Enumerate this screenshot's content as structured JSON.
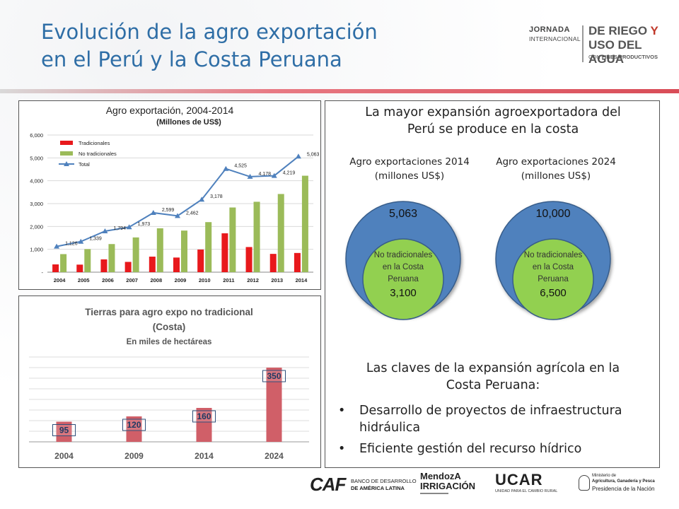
{
  "title": {
    "line1": "Evolución de la agro exportación",
    "line2": "en el Perú y la Costa Peruana"
  },
  "brand": {
    "jornada": "JORNADA",
    "internacional": "INTERNACIONAL",
    "riego": "DE RIEGO",
    "y": "Y",
    "agua": "USO DEL AGUA",
    "con": "CON",
    "fines": "FINES PRODUCTIVOS"
  },
  "chart_data": [
    {
      "type": "bar",
      "title": "Agro exportación, 2004-2014",
      "subtitle": "(Millones de US$)",
      "categories": [
        "2004",
        "2005",
        "2006",
        "2007",
        "2008",
        "2009",
        "2010",
        "2011",
        "2012",
        "2013",
        "2014"
      ],
      "series": [
        {
          "name": "Tradicionales",
          "type": "bar",
          "color": "#e8191c",
          "values": [
            340,
            330,
            560,
            450,
            680,
            640,
            990,
            1700,
            1100,
            800,
            840
          ]
        },
        {
          "name": "No tradicionales",
          "type": "bar",
          "color": "#9bbb59",
          "values": [
            790,
            1010,
            1230,
            1520,
            1920,
            1820,
            2190,
            2830,
            3080,
            3420,
            4220
          ]
        },
        {
          "name": "Total",
          "type": "line",
          "color": "#4f81bd",
          "values": [
            1126,
            1339,
            1794,
            1973,
            2599,
            2462,
            3178,
            4525,
            4178,
            4219,
            5063
          ],
          "labels": [
            "1,126",
            "1,339",
            "1,794",
            "1,973",
            "2,599",
            "2,462",
            "3,178",
            "4,525",
            "4,178",
            "4,219",
            "5,063"
          ]
        }
      ],
      "y_ticks": [
        "-",
        "1,000",
        "2,000",
        "3,000",
        "4,000",
        "5,000",
        "6,000"
      ],
      "ylim": [
        0,
        6000
      ],
      "grid": true,
      "legend": "top-left"
    },
    {
      "type": "bar",
      "title": "Tierras para agro expo no tradicional",
      "subtitle": "(Costa)",
      "unit": "En miles de hectáreas",
      "categories": [
        "2004",
        "2009",
        "2014",
        "2024"
      ],
      "values": [
        95,
        120,
        160,
        350
      ],
      "labels": [
        "95",
        "120",
        "160",
        "350"
      ],
      "ylim": [
        0,
        400
      ],
      "color": "#d05f68",
      "grid": true
    }
  ],
  "right_panel": {
    "heading_line1": "La mayor expansión agroexportadora del",
    "heading_line2": "Perú se produce en la costa",
    "left_title1": "Agro exportaciones 2014",
    "left_title2": "(millones US$)",
    "right_title1": "Agro exportaciones 2024",
    "right_title2": "(millones US$)",
    "left_total": "5,063",
    "right_total": "10,000",
    "inner_line1": "No tradicionales",
    "inner_line2": "en la Costa",
    "inner_line3": "Peruana",
    "left_inner_value": "3,100",
    "right_inner_value": "6,500",
    "outer_color": "#4f81bd",
    "inner_color": "#92d050",
    "keys_line1": "Las claves de la expansión agrícola en la",
    "keys_line2": "Costa Peruana:",
    "bullets": [
      "Desarrollo de proyectos de infraestructura hidráulica",
      "Eficiente gestión del recurso hídrico"
    ]
  },
  "logos": {
    "caf_mark": "CAF",
    "caf_line1": "BANCO DE DESARROLLO",
    "caf_line2": "DE AMÉRICA LATINA",
    "mendoza": "MendozA",
    "irrigacion": "IRRIGACIÓN",
    "ucar": "UCAR",
    "ucar_sub": "UNIDAD PARA EL CAMBIO RURAL",
    "min_line1": "Ministerio de",
    "min_line2": "Agricultura, Ganadería y Pesca",
    "min_line3": "Presidencia de la Nación"
  }
}
